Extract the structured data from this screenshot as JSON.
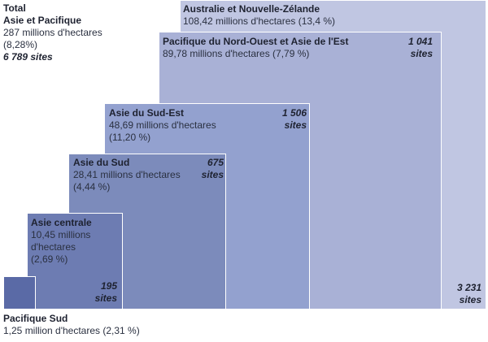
{
  "chart_data": {
    "type": "nested-area",
    "total": {
      "name_line1": "Total",
      "name_line2": "Asie et Pacifique",
      "area_line1": "287 millions d'hectares",
      "area_line2": "(8,28%)",
      "sites": "6 789 sites"
    },
    "regions": [
      {
        "key": "australia",
        "name": "Australie et Nouvelle-Zélande",
        "area": "108,42 millions d'hectares (13,4 %)",
        "hectares_millions": 108.42,
        "percent": 13.4,
        "sites": 3231,
        "sites_line1": "3 231",
        "sites_line2": "sites",
        "color": "#c0c6e2"
      },
      {
        "key": "nw_pacific",
        "name": "Pacifique du Nord-Ouest et Asie de l'Est",
        "area": "89,78 millions d'hectares (7,79 %)",
        "hectares_millions": 89.78,
        "percent": 7.79,
        "sites": 1041,
        "sites_line1": "1 041",
        "sites_line2": "sites",
        "color": "#a9b1d6"
      },
      {
        "key": "se_asia",
        "name": "Asie du Sud-Est",
        "area_line1": "48,69 millions d'hectares",
        "area_line2": "(11,20 %)",
        "hectares_millions": 48.69,
        "percent": 11.2,
        "sites": 1506,
        "sites_line1": "1 506",
        "sites_line2": "sites",
        "color": "#93a1cf"
      },
      {
        "key": "s_asia",
        "name": "Asie du Sud",
        "area_line1": "28,41 millions d'hectares",
        "area_line2": "(4,44 %)",
        "hectares_millions": 28.41,
        "percent": 4.44,
        "sites": 675,
        "sites_line1": "675",
        "sites_line2": "sites",
        "color": "#7c8bbb"
      },
      {
        "key": "c_asia",
        "name": "Asie centrale",
        "area_line1": "10,45 millions",
        "area_line2": "d'hectares",
        "area_line3": "(2,69 %)",
        "hectares_millions": 10.45,
        "percent": 2.69,
        "sites": 195,
        "sites_line1": "195",
        "sites_line2": "sites",
        "color": "#6d7cb2"
      },
      {
        "key": "s_pacific",
        "name": "Pacifique Sud",
        "area": "1,25 million d'hectares (2,31 %)",
        "hectares_millions": 1.25,
        "percent": 2.31,
        "color": "#5a6aa6"
      }
    ]
  }
}
